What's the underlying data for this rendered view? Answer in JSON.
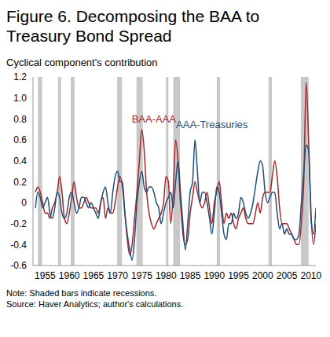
{
  "chart_data": {
    "type": "line",
    "title": "Figure 6. Decomposing the BAA to Treasury Bond Spread",
    "subtitle": "Cyclical component's contribution",
    "notes": [
      "Note: Shaded bars indicate recessions.",
      "Source: Haver Analytics; author's calculations."
    ],
    "grid": false,
    "x": [
      1953,
      1953.5,
      1954,
      1954.5,
      1955,
      1955.5,
      1956,
      1956.5,
      1957,
      1957.5,
      1958,
      1958.5,
      1959,
      1959.5,
      1960,
      1960.5,
      1961,
      1961.5,
      1962,
      1962.5,
      1963,
      1963.5,
      1964,
      1964.5,
      1965,
      1965.5,
      1966,
      1966.5,
      1967,
      1967.5,
      1968,
      1968.5,
      1969,
      1969.5,
      1970,
      1970.5,
      1971,
      1971.5,
      1972,
      1972.5,
      1973,
      1973.5,
      1974,
      1974.5,
      1975,
      1975.5,
      1976,
      1976.5,
      1977,
      1977.5,
      1978,
      1978.5,
      1979,
      1979.5,
      1980,
      1980.5,
      1981,
      1981.5,
      1982,
      1982.5,
      1983,
      1983.5,
      1984,
      1984.5,
      1985,
      1985.5,
      1986,
      1986.5,
      1987,
      1987.5,
      1988,
      1988.5,
      1989,
      1989.5,
      1990,
      1990.5,
      1991,
      1991.5,
      1992,
      1992.5,
      1993,
      1993.5,
      1994,
      1994.5,
      1995,
      1995.5,
      1996,
      1996.5,
      1997,
      1997.5,
      1998,
      1998.5,
      1999,
      1999.5,
      2000,
      2000.5,
      2001,
      2001.5,
      2002,
      2002.5,
      2003,
      2003.5,
      2004,
      2004.5,
      2005,
      2005.5,
      2006,
      2006.5,
      2007,
      2007.5,
      2008,
      2008.5,
      2009,
      2009.5,
      2010,
      2010.5,
      2011
    ],
    "series": [
      {
        "name": "BAA-AAA",
        "color": "#a3262b",
        "label_at": [
          1977.5,
          0.8
        ],
        "values": [
          0.1,
          0.15,
          0.1,
          0.0,
          -0.1,
          -0.1,
          -0.15,
          -0.05,
          0.0,
          0.1,
          0.25,
          0.1,
          -0.15,
          -0.2,
          -0.1,
          0.05,
          0.2,
          0.05,
          -0.05,
          -0.05,
          0.0,
          0.05,
          0.0,
          -0.05,
          -0.05,
          -0.05,
          -0.1,
          0.0,
          0.05,
          -0.15,
          -0.05,
          -0.1,
          -0.1,
          0.0,
          0.15,
          0.25,
          0.15,
          -0.1,
          -0.35,
          -0.5,
          -0.4,
          -0.15,
          0.1,
          0.4,
          0.7,
          0.5,
          0.1,
          -0.1,
          -0.2,
          -0.25,
          -0.2,
          -0.15,
          -0.1,
          0.0,
          0.25,
          0.2,
          -0.2,
          0.1,
          0.6,
          0.4,
          0.0,
          -0.3,
          -0.4,
          -0.35,
          -0.1,
          0.05,
          0.2,
          0.1,
          0.0,
          -0.05,
          0.0,
          0.1,
          -0.05,
          -0.2,
          0.0,
          0.1,
          0.2,
          0.0,
          -0.2,
          -0.1,
          -0.15,
          -0.1,
          -0.2,
          -0.25,
          -0.15,
          -0.1,
          -0.05,
          -0.15,
          -0.2,
          -0.2,
          -0.2,
          -0.1,
          0.0,
          -0.1,
          0.05,
          0.1,
          0.1,
          0.1,
          0.25,
          0.4,
          0.25,
          -0.05,
          -0.2,
          -0.2,
          -0.2,
          -0.25,
          -0.3,
          -0.35,
          -0.4,
          -0.4,
          -0.2,
          0.2,
          1.15,
          0.6,
          -0.1,
          -0.4,
          -0.2
        ]
      },
      {
        "name": "AAA-Treasuries",
        "color": "#1f4e79",
        "label_at": [
          1989.5,
          0.75
        ],
        "values": [
          -0.05,
          0.1,
          0.05,
          -0.05,
          0.0,
          0.05,
          -0.1,
          -0.15,
          -0.05,
          0.1,
          0.05,
          -0.1,
          -0.15,
          -0.1,
          0.05,
          0.1,
          0.0,
          -0.1,
          -0.05,
          0.05,
          0.05,
          0.0,
          -0.05,
          0.0,
          -0.05,
          -0.1,
          -0.15,
          0.0,
          0.1,
          0.15,
          0.0,
          -0.1,
          0.1,
          0.25,
          0.3,
          0.2,
          0.2,
          -0.1,
          -0.3,
          -0.45,
          -0.55,
          -0.35,
          0.0,
          0.2,
          0.3,
          0.15,
          0.1,
          0.15,
          0.15,
          0.1,
          0.0,
          -0.05,
          -0.2,
          -0.1,
          0.0,
          0.05,
          0.1,
          -0.05,
          0.2,
          0.4,
          0.1,
          -0.2,
          -0.45,
          -0.2,
          0.1,
          0.2,
          0.6,
          0.3,
          0.0,
          0.1,
          0.1,
          0.0,
          -0.15,
          -0.3,
          -0.1,
          0.15,
          0.1,
          -0.1,
          -0.3,
          -0.35,
          -0.2,
          -0.2,
          -0.1,
          -0.15,
          -0.1,
          0.05,
          0.0,
          -0.1,
          -0.15,
          -0.1,
          0.0,
          0.15,
          0.3,
          0.4,
          0.35,
          0.1,
          0.0,
          0.05,
          0.1,
          0.1,
          -0.1,
          -0.25,
          -0.2,
          -0.3,
          -0.25,
          -0.3,
          -0.3,
          -0.35,
          -0.35,
          -0.3,
          0.0,
          0.3,
          0.55,
          0.5,
          -0.15,
          -0.3,
          -0.05
        ]
      }
    ],
    "recessions": [
      [
        1953.5,
        1954.4
      ],
      [
        1957.7,
        1958.3
      ],
      [
        1960.3,
        1961.1
      ],
      [
        1969.9,
        1970.9
      ],
      [
        1973.9,
        1975.2
      ],
      [
        1980.0,
        1980.5
      ],
      [
        1981.5,
        1982.9
      ],
      [
        1990.5,
        1991.2
      ],
      [
        2001.2,
        2001.9
      ],
      [
        2007.9,
        2009.5
      ]
    ],
    "xlim": [
      1952.5,
      2011
    ],
    "xticks": [
      1955,
      1960,
      1965,
      1970,
      1975,
      1980,
      1985,
      1990,
      1995,
      2000,
      2005,
      2010
    ],
    "ylim": [
      -0.6,
      1.2
    ],
    "yticks": [
      -0.6,
      -0.4,
      -0.2,
      0,
      0.2,
      0.4,
      0.6,
      0.8,
      {
        "value": 1,
        "label": "1.0"
      },
      1.2
    ]
  }
}
